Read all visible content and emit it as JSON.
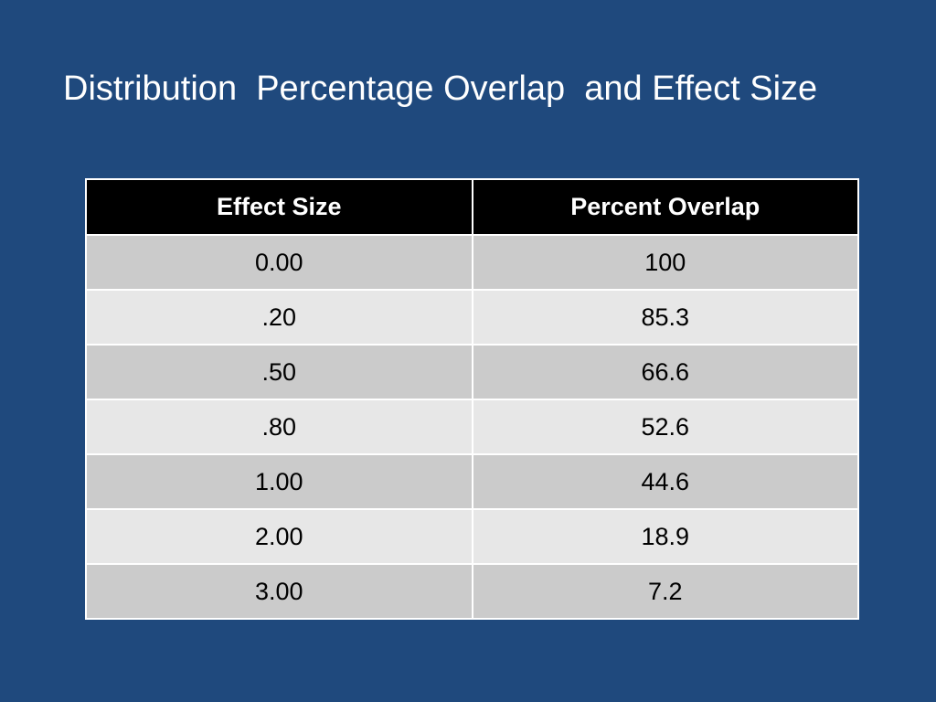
{
  "slide": {
    "title": "Distribution  Percentage Overlap  and Effect Size"
  },
  "table": {
    "headers": [
      "Effect Size",
      "Percent Overlap"
    ],
    "rows": [
      [
        "0.00",
        "100"
      ],
      [
        ".20",
        "85.3"
      ],
      [
        ".50",
        "66.6"
      ],
      [
        ".80",
        "52.6"
      ],
      [
        "1.00",
        "44.6"
      ],
      [
        "2.00",
        "18.9"
      ],
      [
        "3.00",
        "7.2"
      ]
    ]
  },
  "colors": {
    "background": "#1f497d",
    "header_bg": "#000000",
    "row_dark": "#cbcbcb",
    "row_light": "#e7e7e7"
  }
}
